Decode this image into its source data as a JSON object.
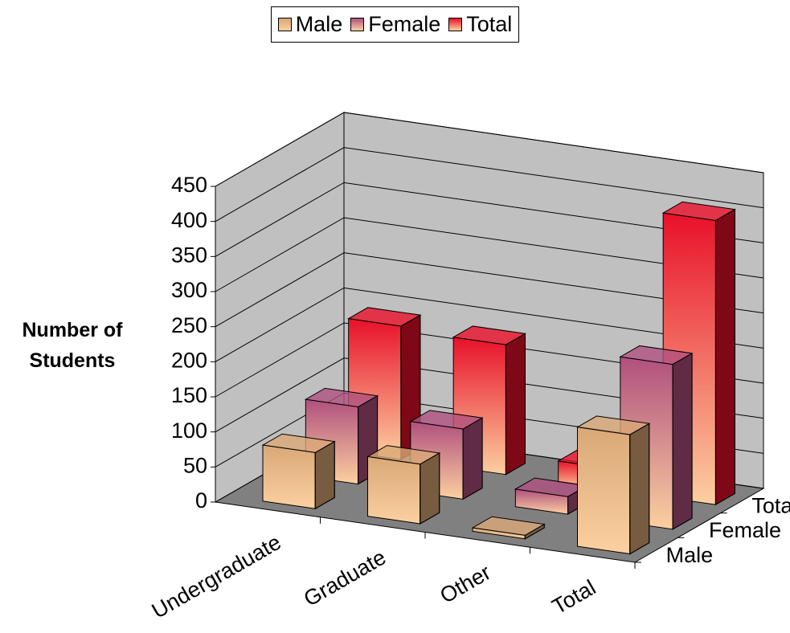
{
  "chart_data": {
    "type": "bar3d",
    "y_label": "Number of Students",
    "categories": [
      "Undergraduate",
      "Graduate",
      "Other",
      "Total"
    ],
    "series": [
      {
        "name": "Male",
        "color": "#d9a877",
        "values": [
          80,
          85,
          5,
          170
        ]
      },
      {
        "name": "Female",
        "color": "#b0507e",
        "values": [
          110,
          100,
          25,
          235
        ]
      },
      {
        "name": "Total",
        "color": "#e8102a",
        "values": [
          190,
          185,
          30,
          405
        ]
      }
    ],
    "ylim": [
      0,
      450
    ],
    "yticks": [
      0,
      50,
      100,
      150,
      200,
      250,
      300,
      350,
      400,
      450
    ],
    "grid": true,
    "legend": "top"
  }
}
